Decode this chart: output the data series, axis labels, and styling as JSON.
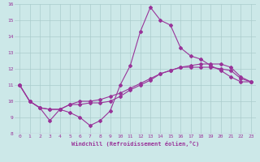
{
  "xlabel": "Windchill (Refroidissement éolien,°C)",
  "xlim": [
    -0.5,
    23.5
  ],
  "ylim": [
    8,
    16
  ],
  "yticks": [
    8,
    9,
    10,
    11,
    12,
    13,
    14,
    15,
    16
  ],
  "xticks": [
    0,
    1,
    2,
    3,
    4,
    5,
    6,
    7,
    8,
    9,
    10,
    11,
    12,
    13,
    14,
    15,
    16,
    17,
    18,
    19,
    20,
    21,
    22,
    23
  ],
  "bg_color": "#cce8e8",
  "line_color": "#993399",
  "grid_color": "#aacccc",
  "series1_x": [
    0,
    1,
    2,
    3,
    4,
    5,
    6,
    7,
    8,
    9,
    10,
    11,
    12,
    13,
    14,
    15,
    16,
    17,
    18,
    19,
    20,
    21,
    22,
    23
  ],
  "series1_y": [
    11.0,
    10.0,
    9.6,
    8.8,
    9.5,
    9.3,
    9.0,
    8.5,
    8.8,
    9.4,
    11.0,
    12.2,
    14.3,
    15.8,
    15.0,
    14.7,
    13.3,
    12.8,
    12.6,
    12.2,
    11.9,
    11.5,
    11.2,
    11.2
  ],
  "series2_x": [
    0,
    1,
    2,
    3,
    4,
    5,
    6,
    7,
    8,
    9,
    10,
    11,
    12,
    13,
    14,
    15,
    16,
    17,
    18,
    19,
    20,
    21,
    22,
    23
  ],
  "series2_y": [
    11.0,
    10.0,
    9.6,
    9.5,
    9.5,
    9.8,
    9.8,
    9.9,
    9.9,
    10.0,
    10.3,
    10.7,
    11.0,
    11.3,
    11.7,
    11.9,
    12.1,
    12.1,
    12.1,
    12.1,
    12.0,
    11.9,
    11.4,
    11.2
  ],
  "series3_x": [
    0,
    1,
    2,
    3,
    4,
    5,
    6,
    7,
    8,
    9,
    10,
    11,
    12,
    13,
    14,
    15,
    16,
    17,
    18,
    19,
    20,
    21,
    22,
    23
  ],
  "series3_y": [
    11.0,
    10.0,
    9.6,
    9.5,
    9.5,
    9.8,
    10.0,
    10.0,
    10.1,
    10.3,
    10.5,
    10.8,
    11.1,
    11.4,
    11.7,
    11.9,
    12.1,
    12.2,
    12.3,
    12.3,
    12.3,
    12.1,
    11.5,
    11.2
  ]
}
